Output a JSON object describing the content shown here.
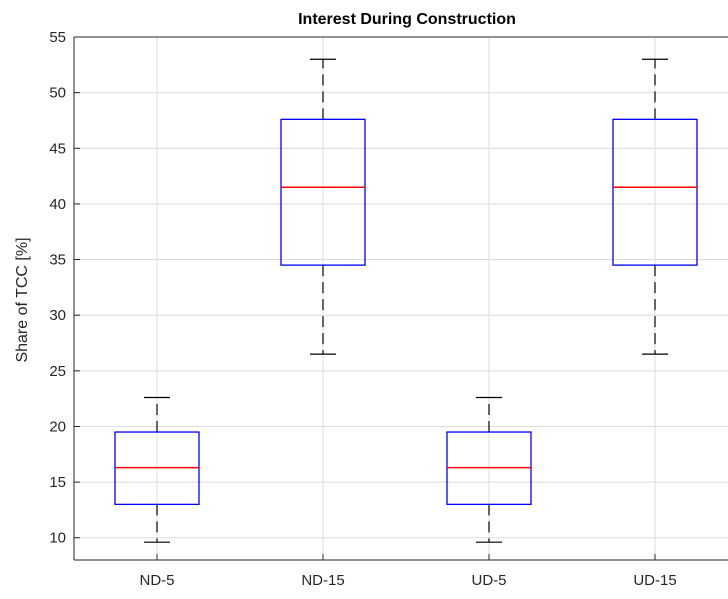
{
  "chart_data": {
    "type": "boxplot",
    "title": "Interest During Construction",
    "xlabel": "",
    "ylabel": "Share of TCC [%]",
    "ylim": [
      8,
      55
    ],
    "yticks": [
      10,
      15,
      20,
      25,
      30,
      35,
      40,
      45,
      50,
      55
    ],
    "grid": true,
    "categories": [
      "ND-5",
      "ND-15",
      "UD-5",
      "UD-15"
    ],
    "boxes": [
      {
        "category": "ND-5",
        "whisker_low": 9.6,
        "q1": 13.0,
        "median": 16.3,
        "q3": 19.5,
        "whisker_high": 22.6
      },
      {
        "category": "ND-15",
        "whisker_low": 26.5,
        "q1": 34.5,
        "median": 41.5,
        "q3": 47.6,
        "whisker_high": 53.0
      },
      {
        "category": "UD-5",
        "whisker_low": 9.6,
        "q1": 13.0,
        "median": 16.3,
        "q3": 19.5,
        "whisker_high": 22.6
      },
      {
        "category": "UD-15",
        "whisker_low": 26.5,
        "q1": 34.5,
        "median": 41.5,
        "q3": 47.6,
        "whisker_high": 53.0
      }
    ],
    "colors": {
      "box": "#0000ff",
      "median": "#ff0000",
      "whisker": "#000000",
      "grid": "#dcdcdc",
      "axis": "#262626"
    }
  }
}
